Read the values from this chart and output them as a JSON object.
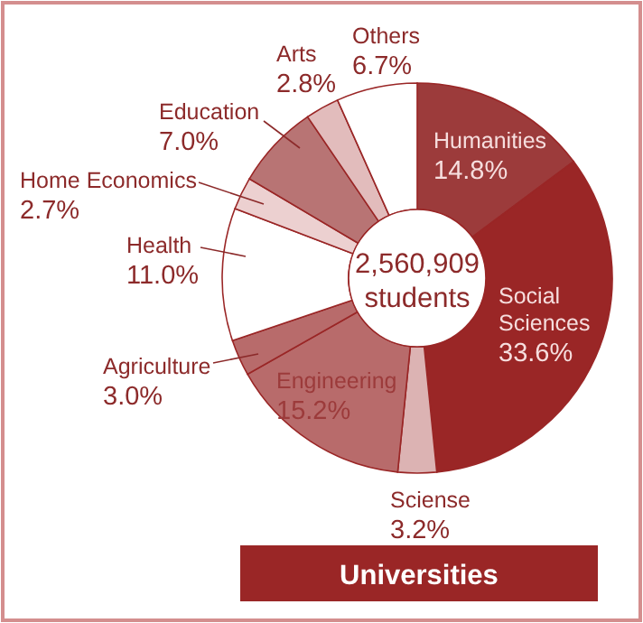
{
  "chart_data": {
    "type": "donut",
    "title": "Universities",
    "annotations": [
      "2,560,909 students"
    ],
    "categories": [
      "Humanities",
      "Social Sciences",
      "Sciense",
      "Engineering",
      "Agriculture",
      "Health",
      "Home Economics",
      "Education",
      "Arts",
      "Others"
    ],
    "values": [
      14.8,
      33.6,
      3.2,
      15.2,
      3.0,
      11.0,
      2.7,
      7.0,
      2.8,
      6.7
    ],
    "value_labels": [
      "14.8%",
      "33.6%",
      "3.2%",
      "15.2%",
      "3.0%",
      "11.0%",
      "2.7%",
      "7.0%",
      "2.8%",
      "6.7%"
    ],
    "colors": [
      "#9c3b3b",
      "#9a2626",
      "#dcb3b3",
      "#b86b6b",
      "#b86b6b",
      "#ffffff",
      "#ecd0d0",
      "#b87474",
      "#e2bcbc",
      "#ffffff"
    ]
  }
}
